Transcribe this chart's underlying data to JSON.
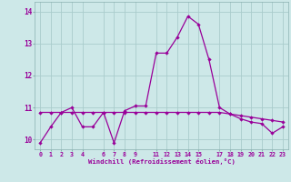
{
  "xlabel": "Windchill (Refroidissement éolien,°C)",
  "background_color": "#cde8e8",
  "grid_color": "#aacccc",
  "line_color": "#990099",
  "x_hours": [
    0,
    1,
    2,
    3,
    4,
    5,
    6,
    7,
    8,
    9,
    10,
    11,
    12,
    13,
    14,
    15,
    16,
    17,
    18,
    19,
    20,
    21,
    22,
    23
  ],
  "line1": [
    9.9,
    10.4,
    10.85,
    11.0,
    10.4,
    10.4,
    10.85,
    9.9,
    10.9,
    11.05,
    11.05,
    12.7,
    12.7,
    13.2,
    13.85,
    13.6,
    12.5,
    11.0,
    10.8,
    10.65,
    10.55,
    10.5,
    10.2,
    10.4
  ],
  "line2": [
    10.85,
    10.85,
    10.85,
    10.85,
    10.85,
    10.85,
    10.85,
    10.85,
    10.85,
    10.85,
    10.85,
    10.85,
    10.85,
    10.85,
    10.85,
    10.85,
    10.85,
    10.85,
    10.8,
    10.75,
    10.7,
    10.65,
    10.6,
    10.55
  ],
  "ylim": [
    9.7,
    14.3
  ],
  "yticks": [
    10,
    11,
    12,
    13,
    14
  ],
  "xtick_positions": [
    0,
    1,
    2,
    3,
    4,
    6,
    7,
    8,
    9,
    11,
    12,
    13,
    14,
    15,
    17,
    18,
    19,
    20,
    21,
    22,
    23
  ],
  "xtick_labels": [
    "0",
    "1",
    "2",
    "3",
    "4",
    "6",
    "7",
    "8",
    "9",
    "11",
    "12",
    "13",
    "14",
    "15",
    "17",
    "18",
    "19",
    "20",
    "21",
    "22",
    "23"
  ]
}
